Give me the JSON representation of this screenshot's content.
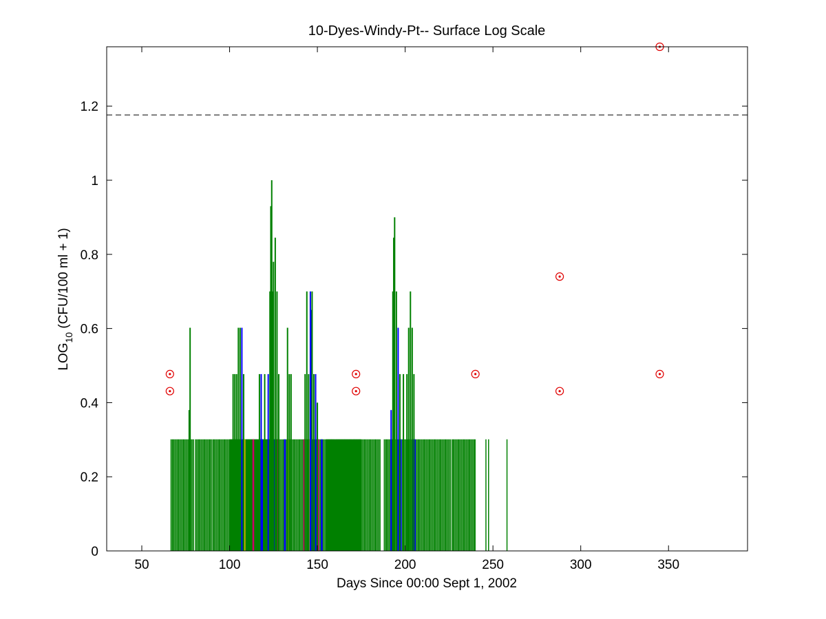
{
  "chart_data": {
    "type": "bar",
    "title": "10-Dyes-Windy-Pt-- Surface Log Scale",
    "xlabel": "Days Since 00:00 Sept 1, 2002",
    "ylabel_main": "LOG",
    "ylabel_sub": "10",
    "ylabel_rest": " (CFU/100 ml + 1)",
    "xlim": [
      30,
      395
    ],
    "ylim": [
      0,
      1.36
    ],
    "xticks": [
      50,
      100,
      150,
      200,
      250,
      300,
      350
    ],
    "yticks": [
      0,
      0.2,
      0.4,
      0.6,
      0.8,
      1,
      1.2
    ],
    "ytick_labels": [
      "0",
      "0.2",
      "0.4",
      "0.6",
      "0.8",
      "1",
      "1.2"
    ],
    "grid": false,
    "reference_line": {
      "y": 1.176,
      "style": "dashed"
    },
    "colors": {
      "bars_primary": "#008000",
      "bars_secondary": "#0000ff",
      "accent_magenta": "#cc0066",
      "accent_yellow": "#e6b800",
      "markers": "#e00000",
      "axes": "#000000"
    },
    "bar_spans": [
      {
        "x0": 66.5,
        "x1": 80,
        "value": 0.301
      },
      {
        "x0": 80.5,
        "x1": 90,
        "value": 0.301
      },
      {
        "x0": 90.5,
        "x1": 160,
        "value": 0.301
      },
      {
        "x0": 160.5,
        "x1": 170,
        "value": 0.301
      },
      {
        "x0": 170.5,
        "x1": 186,
        "value": 0.301
      },
      {
        "x0": 188,
        "x1": 226,
        "value": 0.301
      },
      {
        "x0": 226.5,
        "x1": 240,
        "value": 0.301
      }
    ],
    "sparse_bars": [
      {
        "x": 246,
        "value": 0.301
      },
      {
        "x": 247.5,
        "value": 0.301
      },
      {
        "x": 258,
        "value": 0.301
      }
    ],
    "peak_bars": [
      {
        "x": 77.5,
        "value": 0.602
      },
      {
        "x": 77,
        "value": 0.38
      },
      {
        "x": 102,
        "value": 0.477
      },
      {
        "x": 103,
        "value": 0.477
      },
      {
        "x": 104,
        "value": 0.477
      },
      {
        "x": 105,
        "value": 0.602
      },
      {
        "x": 106,
        "value": 0.602
      },
      {
        "x": 107,
        "value": 0.602,
        "series": "blue"
      },
      {
        "x": 108,
        "value": 0.477
      },
      {
        "x": 117,
        "value": 0.477
      },
      {
        "x": 118,
        "value": 0.477,
        "series": "blue"
      },
      {
        "x": 120,
        "value": 0.477
      },
      {
        "x": 122,
        "value": 0.477,
        "series": "blue"
      },
      {
        "x": 123,
        "value": 0.7
      },
      {
        "x": 123.5,
        "value": 0.93
      },
      {
        "x": 124,
        "value": 1.0
      },
      {
        "x": 124.5,
        "value": 0.7
      },
      {
        "x": 125,
        "value": 0.78
      },
      {
        "x": 126,
        "value": 0.845
      },
      {
        "x": 127,
        "value": 0.7
      },
      {
        "x": 128,
        "value": 0.477
      },
      {
        "x": 133,
        "value": 0.602
      },
      {
        "x": 134,
        "value": 0.477
      },
      {
        "x": 135,
        "value": 0.477
      },
      {
        "x": 143,
        "value": 0.477
      },
      {
        "x": 144,
        "value": 0.7
      },
      {
        "x": 145,
        "value": 0.477
      },
      {
        "x": 146,
        "value": 0.7,
        "series": "blue"
      },
      {
        "x": 146.5,
        "value": 0.65,
        "series": "blue"
      },
      {
        "x": 147,
        "value": 0.7
      },
      {
        "x": 148,
        "value": 0.477
      },
      {
        "x": 149,
        "value": 0.477,
        "series": "blue"
      },
      {
        "x": 150,
        "value": 0.4
      },
      {
        "x": 192,
        "value": 0.38,
        "series": "blue"
      },
      {
        "x": 193,
        "value": 0.7
      },
      {
        "x": 193.5,
        "value": 0.845
      },
      {
        "x": 194,
        "value": 0.9
      },
      {
        "x": 195,
        "value": 0.7
      },
      {
        "x": 196,
        "value": 0.602,
        "series": "blue"
      },
      {
        "x": 197,
        "value": 0.477
      },
      {
        "x": 199,
        "value": 0.477
      },
      {
        "x": 201,
        "value": 0.477
      },
      {
        "x": 202,
        "value": 0.602
      },
      {
        "x": 203,
        "value": 0.7
      },
      {
        "x": 204,
        "value": 0.602
      },
      {
        "x": 205,
        "value": 0.477
      }
    ],
    "blue_bands": [
      {
        "x0": 118,
        "x1": 119,
        "value": 0.301
      },
      {
        "x0": 125,
        "x1": 126,
        "value": 0.301
      },
      {
        "x0": 131,
        "x1": 132,
        "value": 0.301
      },
      {
        "x0": 147,
        "x1": 148,
        "value": 0.301
      },
      {
        "x0": 152,
        "x1": 153,
        "value": 0.301
      },
      {
        "x0": 197,
        "x1": 198,
        "value": 0.301
      },
      {
        "x0": 204,
        "x1": 206,
        "value": 0.301
      }
    ],
    "magenta_bands": [
      {
        "x0": 113,
        "x1": 114,
        "value": 0.301
      },
      {
        "x0": 127,
        "x1": 128,
        "value": 0.301
      },
      {
        "x0": 142,
        "x1": 143,
        "value": 0.301
      },
      {
        "x0": 150,
        "x1": 151,
        "value": 0.301
      }
    ],
    "yellow_bands": [
      {
        "x0": 108,
        "x1": 109,
        "value": 0.301
      },
      {
        "x0": 133,
        "x1": 134,
        "value": 0.301
      },
      {
        "x0": 145,
        "x1": 146,
        "value": 0.301
      },
      {
        "x0": 193,
        "x1": 194,
        "value": 0.301
      }
    ],
    "markers": [
      {
        "x": 66,
        "y": 0.477
      },
      {
        "x": 66,
        "y": 0.431
      },
      {
        "x": 172,
        "y": 0.477
      },
      {
        "x": 172,
        "y": 0.431
      },
      {
        "x": 240,
        "y": 0.477
      },
      {
        "x": 288,
        "y": 0.74
      },
      {
        "x": 288,
        "y": 0.431
      },
      {
        "x": 345,
        "y": 1.36
      },
      {
        "x": 345,
        "y": 0.477
      }
    ]
  }
}
